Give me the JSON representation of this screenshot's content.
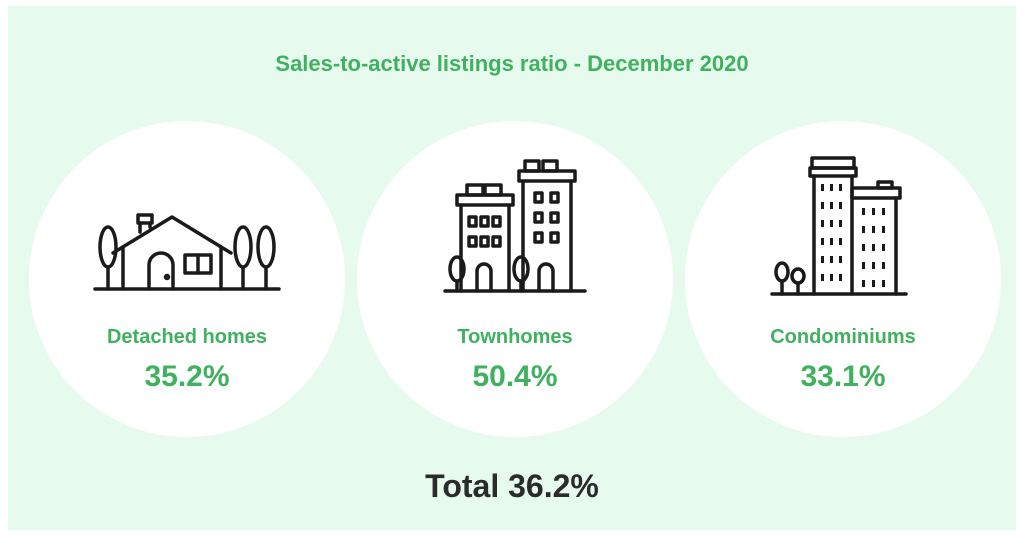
{
  "title": "Sales-to-active listings ratio - December 2020",
  "cards": [
    {
      "label": "Detached homes",
      "value": "35.2%",
      "icon": "house-icon"
    },
    {
      "label": "Townhomes",
      "value": "50.4%",
      "icon": "townhouse-icon"
    },
    {
      "label": "Condominiums",
      "value": "33.1%",
      "icon": "condo-tower-icon"
    }
  ],
  "total": "Total 36.2%",
  "colors": {
    "accent": "#3fb15f",
    "background": "#e6fbee",
    "card": "#ffffff",
    "text": "#2b2b2b"
  }
}
